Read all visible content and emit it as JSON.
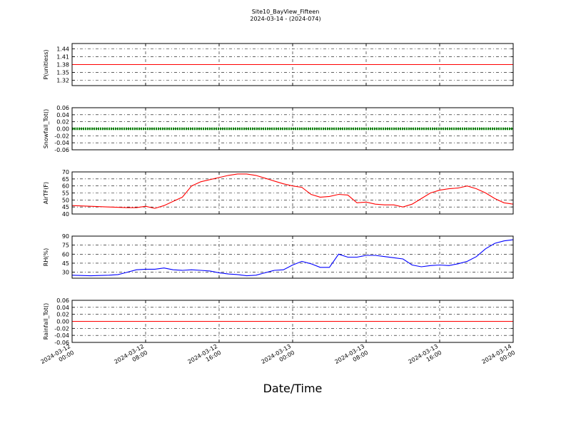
{
  "figure": {
    "title_line1": "Site10_BayView_Fifteen",
    "title_line2": "2024-03-14 - (2024-074)",
    "xlabel": "Date/Time",
    "x_ticks": [
      {
        "line1": "2024-03-12",
        "line2": "00:00"
      },
      {
        "line1": "2024-03-12",
        "line2": "08:00"
      },
      {
        "line1": "2024-03-12",
        "line2": "16:00"
      },
      {
        "line1": "2024-03-13",
        "line2": "00:00"
      },
      {
        "line1": "2024-03-13",
        "line2": "08:00"
      },
      {
        "line1": "2024-03-13",
        "line2": "16:00"
      },
      {
        "line1": "2024-03-14",
        "line2": "00:00"
      }
    ]
  },
  "chart_data": [
    {
      "type": "line",
      "ylabel": "P(unitless)",
      "color": "#ff0000",
      "ylim": [
        1.3,
        1.46
      ],
      "y_ticks": [
        "1.44",
        "1.41",
        "1.38",
        "1.35",
        "1.32"
      ],
      "x": [
        "2024-03-12 00:00",
        "2024-03-14 00:00"
      ],
      "y": [
        1.38,
        1.38
      ]
    },
    {
      "type": "line",
      "ylabel": "Snowfall_Tot()",
      "color": "#008000",
      "ylim": [
        -0.06,
        0.06
      ],
      "y_ticks": [
        "0.06",
        "0.04",
        "0.02",
        "0.00",
        "-0.02",
        "-0.04",
        "-0.06"
      ],
      "x": [
        "2024-03-12 00:00",
        "2024-03-14 00:00"
      ],
      "y": [
        0,
        0
      ]
    },
    {
      "type": "line",
      "ylabel": "AirTF(F)",
      "color": "#ff0000",
      "ylim": [
        40,
        70
      ],
      "y_ticks": [
        "70",
        "65",
        "60",
        "55",
        "50",
        "45",
        "40"
      ],
      "x": [
        "2024-03-12 00:00",
        "2024-03-12 02:00",
        "2024-03-12 04:00",
        "2024-03-12 06:00",
        "2024-03-12 07:00",
        "2024-03-12 08:00",
        "2024-03-12 09:00",
        "2024-03-12 10:00",
        "2024-03-12 11:00",
        "2024-03-12 12:00",
        "2024-03-12 13:00",
        "2024-03-12 14:00",
        "2024-03-12 15:00",
        "2024-03-12 16:00",
        "2024-03-12 17:00",
        "2024-03-12 18:00",
        "2024-03-12 19:00",
        "2024-03-12 20:00",
        "2024-03-12 21:00",
        "2024-03-12 22:00",
        "2024-03-12 23:00",
        "2024-03-13 00:00",
        "2024-03-13 01:00",
        "2024-03-13 02:00",
        "2024-03-13 03:00",
        "2024-03-13 04:00",
        "2024-03-13 05:00",
        "2024-03-13 06:00",
        "2024-03-13 07:00",
        "2024-03-13 08:00",
        "2024-03-13 09:00",
        "2024-03-13 10:00",
        "2024-03-13 11:00",
        "2024-03-13 12:00",
        "2024-03-13 13:00",
        "2024-03-13 14:00",
        "2024-03-13 15:00",
        "2024-03-13 16:00",
        "2024-03-13 17:00",
        "2024-03-13 18:00",
        "2024-03-13 19:00",
        "2024-03-13 20:00",
        "2024-03-13 21:00",
        "2024-03-13 22:00",
        "2024-03-13 23:00",
        "2024-03-14 00:00"
      ],
      "y": [
        46,
        45.5,
        45,
        44.5,
        44.5,
        45.5,
        44,
        46,
        49,
        52,
        60,
        63,
        64.5,
        66,
        67.5,
        68.5,
        68.5,
        67.5,
        65.5,
        63.5,
        61.5,
        60,
        59,
        54,
        52,
        52.5,
        54,
        53.5,
        48,
        48.5,
        47,
        46.5,
        46.5,
        45,
        47,
        51,
        55,
        57,
        58,
        58.5,
        60,
        58,
        55,
        51,
        48,
        47
      ]
    },
    {
      "type": "line",
      "ylabel": "RH(%)",
      "color": "#0000ff",
      "ylim": [
        20,
        90
      ],
      "y_ticks": [
        "90",
        "75",
        "60",
        "45",
        "30"
      ],
      "x": [
        "2024-03-12 00:00",
        "2024-03-12 02:00",
        "2024-03-12 04:00",
        "2024-03-12 05:00",
        "2024-03-12 06:00",
        "2024-03-12 07:00",
        "2024-03-12 08:00",
        "2024-03-12 09:00",
        "2024-03-12 10:00",
        "2024-03-12 11:00",
        "2024-03-12 12:00",
        "2024-03-12 13:00",
        "2024-03-12 14:00",
        "2024-03-12 15:00",
        "2024-03-12 16:00",
        "2024-03-12 17:00",
        "2024-03-12 18:00",
        "2024-03-12 19:00",
        "2024-03-12 20:00",
        "2024-03-12 21:00",
        "2024-03-12 22:00",
        "2024-03-12 23:00",
        "2024-03-13 00:00",
        "2024-03-13 01:00",
        "2024-03-13 02:00",
        "2024-03-13 03:00",
        "2024-03-13 04:00",
        "2024-03-13 05:00",
        "2024-03-13 06:00",
        "2024-03-13 07:00",
        "2024-03-13 08:00",
        "2024-03-13 09:00",
        "2024-03-13 10:00",
        "2024-03-13 11:00",
        "2024-03-13 12:00",
        "2024-03-13 13:00",
        "2024-03-13 14:00",
        "2024-03-13 15:00",
        "2024-03-13 16:00",
        "2024-03-13 17:00",
        "2024-03-13 18:00",
        "2024-03-13 19:00",
        "2024-03-13 20:00",
        "2024-03-13 21:00",
        "2024-03-13 22:00",
        "2024-03-13 23:00",
        "2024-03-14 00:00"
      ],
      "y": [
        25,
        24,
        25,
        26,
        30,
        34,
        35,
        35,
        37,
        34,
        33,
        34,
        33,
        32,
        29,
        27,
        26,
        24,
        25,
        29,
        33,
        34,
        42,
        48,
        44,
        38,
        38,
        60,
        55,
        55,
        58,
        58,
        56,
        54,
        52,
        42,
        39,
        41,
        42,
        41,
        44,
        48,
        56,
        69,
        78,
        82,
        84
      ]
    },
    {
      "type": "line",
      "ylabel": "Rainfall_Tot()",
      "color": "#ff0000",
      "ylim": [
        -0.06,
        0.06
      ],
      "y_ticks": [
        "0.06",
        "0.04",
        "0.02",
        "0.00",
        "-0.02",
        "-0.04",
        "-0.06"
      ],
      "x": [
        "2024-03-12 00:00",
        "2024-03-14 00:00"
      ],
      "y": [
        0,
        0
      ]
    }
  ]
}
